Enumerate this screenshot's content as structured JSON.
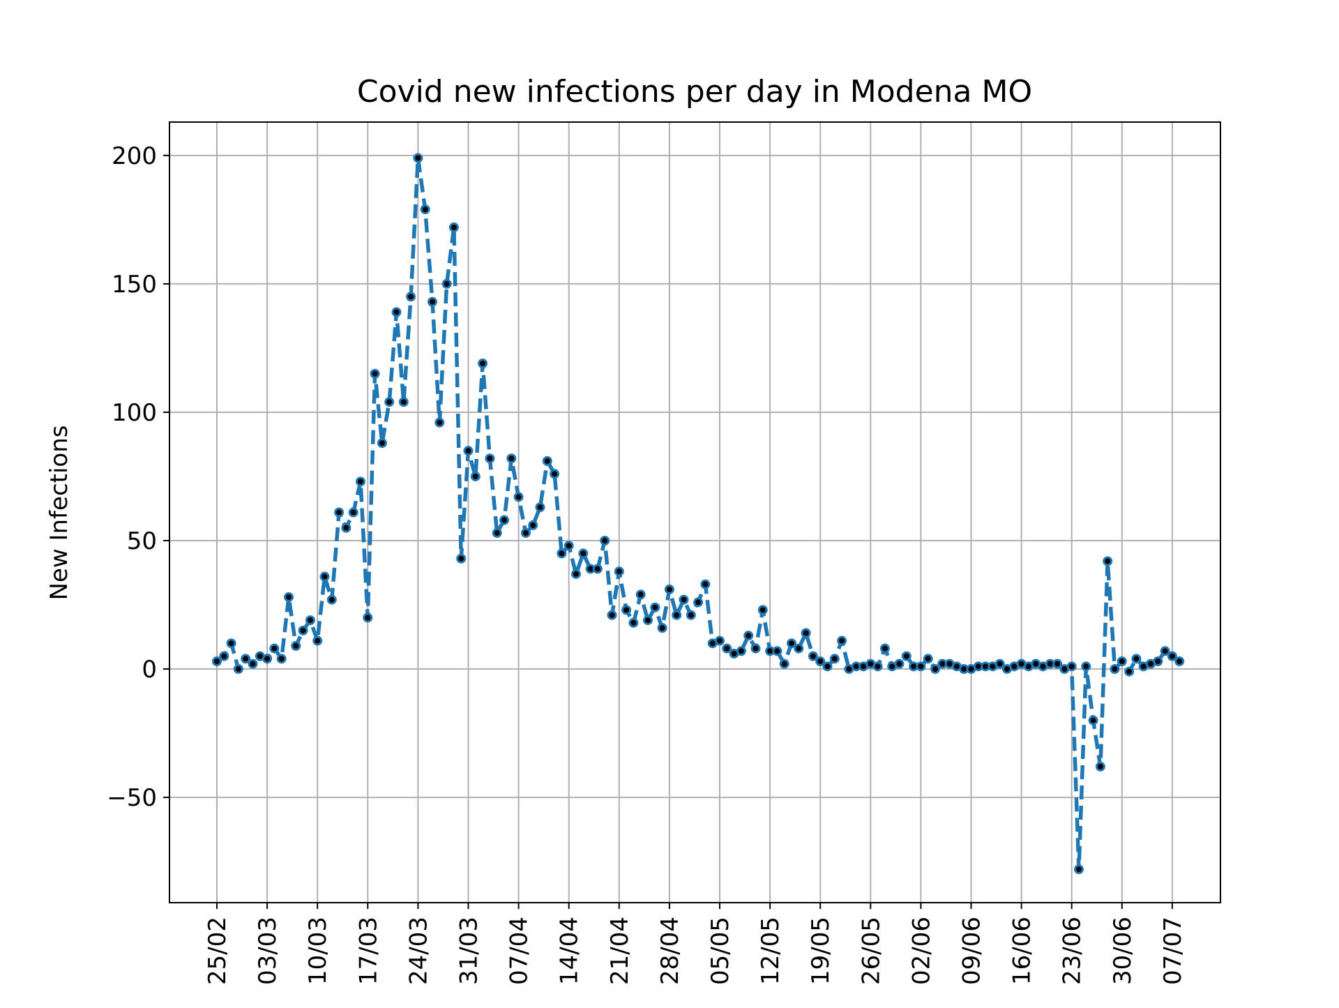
{
  "chart_data": {
    "type": "line",
    "title": "Covid new infections per day in Modena MO",
    "ylabel": "New Infections",
    "xlabel": "",
    "x_start_label": "25/02",
    "x_tick_labels": [
      "25/02",
      "03/03",
      "10/03",
      "17/03",
      "24/03",
      "31/03",
      "07/04",
      "14/04",
      "21/04",
      "28/04",
      "05/05",
      "12/05",
      "19/05",
      "26/05",
      "02/06",
      "09/06",
      "16/06",
      "23/06",
      "30/06",
      "07/07"
    ],
    "y_ticks": [
      -50,
      0,
      50,
      100,
      150,
      200
    ],
    "y_tick_labels": [
      "−50",
      "0",
      "50",
      "100",
      "150",
      "200"
    ],
    "ylim": [
      -91,
      213
    ],
    "grid": true,
    "legend": "none",
    "series": [
      {
        "color": "#1f77b4",
        "line_style": "dashed",
        "marker_color": "#000000",
        "values": [
          3,
          5,
          10,
          0,
          4,
          2,
          5,
          4,
          8,
          4,
          28,
          9,
          15,
          19,
          11,
          36,
          27,
          61,
          55,
          61,
          73,
          20,
          115,
          88,
          104,
          139,
          104,
          145,
          199,
          179,
          143,
          96,
          150,
          172,
          43,
          85,
          75,
          119,
          82,
          53,
          58,
          82,
          67,
          53,
          56,
          63,
          81,
          76,
          45,
          48,
          37,
          45,
          39,
          39,
          50,
          21,
          38,
          23,
          18,
          29,
          19,
          24,
          16,
          31,
          21,
          27,
          21,
          26,
          33,
          10,
          11,
          8,
          6,
          7,
          13,
          8,
          23,
          7,
          7,
          2,
          10,
          8,
          14,
          5,
          3,
          1,
          4,
          11,
          0,
          1,
          1,
          2,
          1,
          8,
          1,
          2,
          5,
          1,
          1,
          4,
          0,
          2,
          2,
          1,
          0,
          0,
          1,
          1,
          1,
          2,
          0,
          1,
          2,
          1,
          2,
          1,
          2,
          2,
          0,
          1,
          -78,
          1,
          -20,
          -38,
          42,
          0,
          3,
          -1,
          4,
          1,
          2,
          3,
          7,
          5,
          3
        ]
      }
    ]
  }
}
